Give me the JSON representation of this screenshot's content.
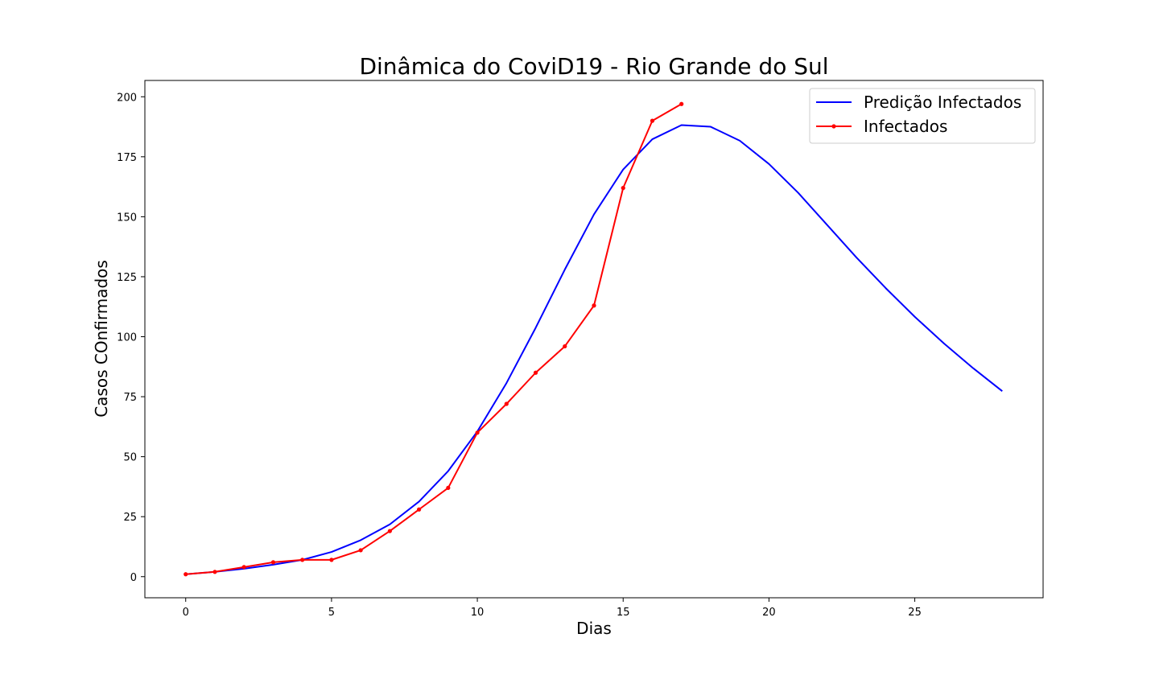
{
  "chart_data": {
    "type": "line",
    "title": "Dinâmica do CoviD19 - Rio Grande do Sul",
    "xlabel": "Dias",
    "ylabel": "Casos COnfirmados",
    "xlim": [
      -1.4,
      29.4
    ],
    "ylim": [
      -8.8,
      206.8
    ],
    "xticks": [
      0,
      5,
      10,
      15,
      20,
      25
    ],
    "yticks": [
      0,
      25,
      50,
      75,
      100,
      125,
      150,
      175,
      200
    ],
    "grid": false,
    "legend_position": "top-right",
    "series": [
      {
        "name": "Predição Infectados",
        "color": "#0000ff",
        "marker": false,
        "x": [
          0,
          1,
          2,
          3,
          4,
          5,
          6,
          7,
          8,
          9,
          10,
          11,
          12,
          13,
          14,
          15,
          16,
          17,
          18,
          19,
          20,
          21,
          22,
          23,
          24,
          25,
          26,
          27,
          28
        ],
        "y": [
          1,
          2,
          3.3,
          5,
          7,
          10.3,
          15.2,
          21.8,
          31.3,
          44,
          60.5,
          80.7,
          103.7,
          128,
          151,
          169.7,
          182.3,
          188.2,
          187.5,
          181.7,
          172,
          160,
          146.5,
          133,
          120.3,
          108.3,
          97.2,
          86.9,
          77.3
        ]
      },
      {
        "name": "Infectados",
        "color": "#ff0000",
        "marker": true,
        "x": [
          0,
          1,
          2,
          3,
          4,
          5,
          6,
          7,
          8,
          9,
          10,
          11,
          12,
          13,
          14,
          15,
          16,
          17
        ],
        "y": [
          1,
          2,
          4,
          6,
          7,
          7,
          11,
          19,
          28,
          37,
          60,
          72,
          85,
          96,
          113,
          162,
          190,
          197
        ]
      }
    ]
  }
}
